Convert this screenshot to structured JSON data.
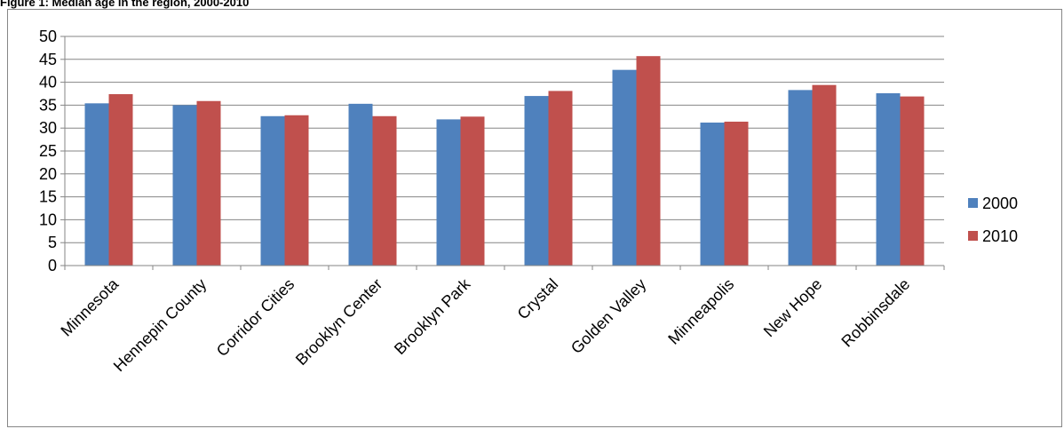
{
  "figure": {
    "title": "Figure 1: Median age in the region, 2000-2010"
  },
  "chart_data": {
    "type": "bar",
    "title": "Figure 1: Median age in the region, 2000-2010",
    "xlabel": "",
    "ylabel": "",
    "ylim": [
      0,
      50
    ],
    "yticks": [
      "0",
      "5",
      "10",
      "15",
      "20",
      "25",
      "30",
      "35",
      "40",
      "45",
      "50"
    ],
    "grid": true,
    "legend_position": "right",
    "categories": [
      "Minnesota",
      "Hennepin County",
      "Corridor Cities",
      "Brooklyn Center",
      "Brooklyn Park",
      "Crystal",
      "Golden Valley",
      "Minneapolis",
      "New Hope",
      "Robbinsdale"
    ],
    "series": [
      {
        "name": "2000",
        "color": "#4f81bd",
        "values": [
          35.4,
          35.0,
          32.6,
          35.3,
          31.9,
          37.0,
          42.7,
          31.2,
          38.3,
          37.6
        ]
      },
      {
        "name": "2010",
        "color": "#c0504d",
        "values": [
          37.4,
          35.9,
          32.8,
          32.6,
          32.5,
          38.1,
          45.7,
          31.4,
          39.4,
          36.9
        ]
      }
    ]
  }
}
